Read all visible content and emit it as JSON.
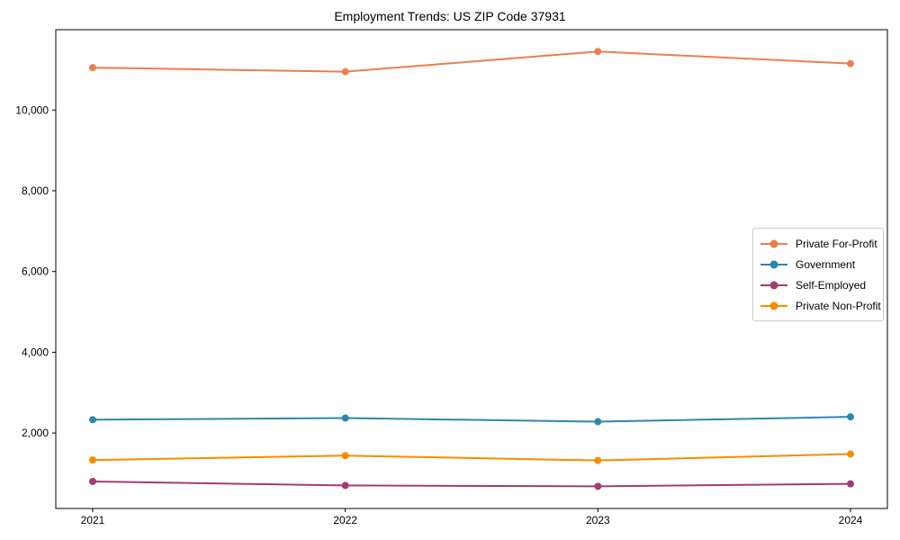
{
  "chart_data": {
    "type": "line",
    "title": "Employment Trends: US ZIP Code 37931",
    "xlabel": "",
    "ylabel": "",
    "categories": [
      "2021",
      "2022",
      "2023",
      "2024"
    ],
    "series": [
      {
        "name": "Private For-Profit",
        "color": "#E8804D",
        "values": [
          11050,
          10950,
          11450,
          11150
        ]
      },
      {
        "name": "Government",
        "color": "#2E86AB",
        "values": [
          2330,
          2370,
          2280,
          2400
        ]
      },
      {
        "name": "Self-Employed",
        "color": "#A23B72",
        "values": [
          800,
          700,
          680,
          740
        ]
      },
      {
        "name": "Private Non-Profit",
        "color": "#F18F01",
        "values": [
          1330,
          1440,
          1320,
          1480
        ]
      }
    ],
    "yticks": [
      2000,
      4000,
      6000,
      8000,
      10000
    ],
    "ylim": [
      130,
      11990
    ],
    "grid": false,
    "marker": "circle",
    "legend_position": "center-right",
    "spine_color": "#000000",
    "background_color": "#ffffff"
  }
}
